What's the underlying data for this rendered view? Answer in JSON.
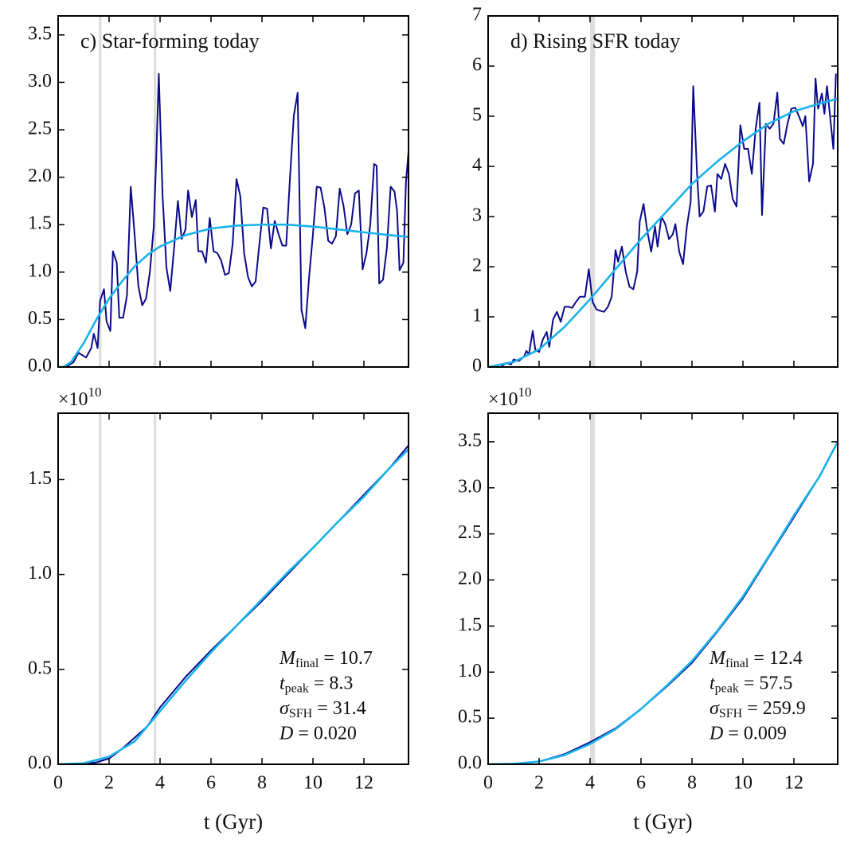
{
  "chart_data": [
    {
      "type": "line",
      "title": "c) Star-forming today",
      "xlim": [
        0,
        13.75
      ],
      "ylim": [
        0,
        3.7
      ],
      "xticks": [
        0,
        2,
        4,
        6,
        8,
        10,
        12
      ],
      "xticklabels": false,
      "yticks": [
        {
          "value": 0,
          "label": "0.0"
        },
        {
          "value": 0.5,
          "label": "0.5"
        },
        {
          "value": 1,
          "label": "1.0"
        },
        {
          "value": 1.5,
          "label": "1.5"
        },
        {
          "value": 2,
          "label": "2.0"
        },
        {
          "value": 2.5,
          "label": "2.5"
        },
        {
          "value": 3,
          "label": "3.0"
        },
        {
          "value": 3.5,
          "label": "3.5"
        }
      ],
      "bands": [
        [
          1.6,
          1.7
        ],
        [
          3.75,
          3.85
        ]
      ],
      "band_color": "#dddddd",
      "series": [
        {
          "color": "#0a0a8a",
          "x": [
            0,
            0.3,
            0.6,
            0.8,
            1.1,
            1.3,
            1.4,
            1.55,
            1.65,
            1.8,
            1.9,
            2.05,
            2.15,
            2.3,
            2.4,
            2.55,
            2.7,
            2.85,
            3.0,
            3.15,
            3.3,
            3.45,
            3.6,
            3.75,
            3.85,
            3.95,
            4.1,
            4.25,
            4.4,
            4.55,
            4.7,
            4.85,
            5.0,
            5.1,
            5.25,
            5.4,
            5.5,
            5.65,
            5.8,
            5.95,
            6.1,
            6.25,
            6.4,
            6.55,
            6.7,
            6.85,
            7.0,
            7.15,
            7.3,
            7.45,
            7.6,
            7.75,
            7.9,
            8.05,
            8.2,
            8.35,
            8.5,
            8.65,
            8.8,
            8.95,
            9.1,
            9.25,
            9.4,
            9.55,
            9.7,
            9.85,
            10.0,
            10.15,
            10.3,
            10.45,
            10.6,
            10.75,
            10.9,
            11.05,
            11.2,
            11.35,
            11.5,
            11.65,
            11.8,
            11.95,
            12.1,
            12.25,
            12.4,
            12.5,
            12.6,
            12.75,
            12.9,
            13.05,
            13.2,
            13.3,
            13.4,
            13.55,
            13.65,
            13.75
          ],
          "values": [
            0,
            0,
            0.05,
            0.15,
            0.1,
            0.2,
            0.35,
            0.2,
            0.7,
            0.82,
            0.48,
            0.38,
            1.22,
            1.1,
            0.52,
            0.52,
            0.75,
            1.9,
            1.4,
            0.85,
            0.65,
            0.72,
            1.0,
            1.47,
            2.2,
            3.09,
            1.8,
            1.05,
            0.8,
            1.25,
            1.75,
            1.35,
            1.45,
            1.86,
            1.58,
            1.76,
            1.22,
            1.22,
            1.1,
            1.57,
            1.22,
            1.2,
            1.12,
            0.97,
            0.99,
            1.3,
            1.98,
            1.8,
            1.2,
            0.95,
            0.85,
            0.9,
            1.3,
            1.68,
            1.67,
            1.25,
            1.54,
            1.4,
            1.28,
            1.28,
            2.0,
            2.65,
            2.89,
            0.6,
            0.41,
            0.95,
            1.4,
            1.9,
            1.89,
            1.68,
            1.33,
            1.3,
            1.38,
            1.88,
            1.7,
            1.4,
            1.5,
            1.83,
            1.86,
            1.03,
            1.2,
            1.5,
            2.14,
            2.12,
            0.88,
            0.92,
            1.25,
            1.9,
            1.85,
            1.65,
            1.02,
            1.1,
            1.95,
            2.27
          ]
        },
        {
          "color": "#1ab2ec",
          "x": [
            0,
            0.2,
            0.5,
            1,
            1.5,
            2,
            2.5,
            3,
            3.5,
            4,
            5,
            6,
            7,
            8,
            9,
            10,
            11,
            12,
            13,
            13.75
          ],
          "values": [
            0,
            0,
            0.05,
            0.25,
            0.5,
            0.72,
            0.9,
            1.06,
            1.18,
            1.27,
            1.39,
            1.46,
            1.49,
            1.5,
            1.5,
            1.48,
            1.45,
            1.42,
            1.39,
            1.37
          ]
        }
      ]
    },
    {
      "type": "line",
      "title": "d) Rising SFR today",
      "xlim": [
        0,
        13.72
      ],
      "ylim": [
        0,
        7
      ],
      "xticks": [
        0,
        2,
        4,
        6,
        8,
        10,
        12
      ],
      "xticklabels": false,
      "yticks": [
        0,
        1,
        2,
        3,
        4,
        5,
        6,
        7
      ],
      "bands": [
        [
          4.0,
          4.2
        ]
      ],
      "band_color": "#dddddd",
      "series": [
        {
          "color": "#0a0a8a",
          "x": [
            0,
            0.5,
            0.7,
            0.9,
            1.0,
            1.2,
            1.4,
            1.5,
            1.6,
            1.75,
            1.85,
            2.0,
            2.15,
            2.3,
            2.4,
            2.55,
            2.7,
            2.85,
            3.0,
            3.15,
            3.3,
            3.45,
            3.6,
            3.8,
            3.95,
            4.1,
            4.25,
            4.4,
            4.55,
            4.7,
            4.85,
            5.0,
            5.1,
            5.25,
            5.4,
            5.55,
            5.7,
            5.85,
            5.95,
            6.1,
            6.25,
            6.4,
            6.55,
            6.65,
            6.8,
            6.95,
            7.1,
            7.25,
            7.35,
            7.5,
            7.65,
            7.8,
            7.95,
            8.05,
            8.2,
            8.3,
            8.45,
            8.6,
            8.75,
            8.9,
            9.0,
            9.15,
            9.3,
            9.45,
            9.6,
            9.75,
            9.9,
            10.05,
            10.2,
            10.35,
            10.5,
            10.65,
            10.75,
            10.9,
            11.05,
            11.2,
            11.35,
            11.45,
            11.6,
            11.75,
            11.9,
            12.05,
            12.2,
            12.35,
            12.45,
            12.6,
            12.75,
            12.85,
            12.95,
            13.1,
            13.2,
            13.3,
            13.45,
            13.55,
            13.65
          ],
          "values": [
            0,
            0,
            0.08,
            0.05,
            0.15,
            0.12,
            0.2,
            0.32,
            0.25,
            0.72,
            0.35,
            0.3,
            0.55,
            0.7,
            0.4,
            0.95,
            1.1,
            0.9,
            1.2,
            1.2,
            1.18,
            1.3,
            1.4,
            1.4,
            1.95,
            1.3,
            1.15,
            1.12,
            1.1,
            1.2,
            1.4,
            2.33,
            2.1,
            2.4,
            1.9,
            1.6,
            1.55,
            1.9,
            2.9,
            3.25,
            2.7,
            2.3,
            2.8,
            2.4,
            3.0,
            2.85,
            2.55,
            2.65,
            2.85,
            2.3,
            2.05,
            2.8,
            3.3,
            5.6,
            3.85,
            3.0,
            3.1,
            3.6,
            3.62,
            3.1,
            3.85,
            3.75,
            4.05,
            3.85,
            3.35,
            3.2,
            4.82,
            4.35,
            4.35,
            3.85,
            4.75,
            5.27,
            3.03,
            4.85,
            4.75,
            4.85,
            5.47,
            4.55,
            4.45,
            4.85,
            5.15,
            5.17,
            5.0,
            4.8,
            5.0,
            3.7,
            4.05,
            5.75,
            5.15,
            5.45,
            5.05,
            5.6,
            4.85,
            4.35,
            5.85
          ]
        },
        {
          "color": "#1ab2ec",
          "x": [
            0,
            1,
            2,
            3,
            4,
            5,
            6,
            7,
            8,
            9,
            10,
            11,
            12,
            13,
            13.72
          ],
          "values": [
            0,
            0.1,
            0.35,
            0.8,
            1.35,
            1.95,
            2.55,
            3.1,
            3.65,
            4.1,
            4.5,
            4.85,
            5.1,
            5.25,
            5.35
          ]
        }
      ]
    },
    {
      "type": "line",
      "xlabel": "t (Gyr)",
      "y_multiplier": {
        "base": "×10",
        "exponent": "10"
      },
      "xlim": [
        0,
        13.75
      ],
      "ylim": [
        0,
        1.85
      ],
      "xticks": [
        0,
        2,
        4,
        6,
        8,
        10,
        12
      ],
      "xticklabels": true,
      "yticks": [
        {
          "value": 0,
          "label": "0.0"
        },
        {
          "value": 0.5,
          "label": "0.5"
        },
        {
          "value": 1,
          "label": "1.0"
        },
        {
          "value": 1.5,
          "label": "1.5"
        }
      ],
      "bands": [
        [
          1.6,
          1.7
        ],
        [
          3.75,
          3.85
        ]
      ],
      "band_color": "#dddddd",
      "annotations": [
        {
          "var": "M",
          "sub": "final",
          "text": "= 10.7"
        },
        {
          "var": "t",
          "sub": "peak",
          "text": "= 8.3"
        },
        {
          "var": "σ",
          "sub": "SFH",
          "text": "= 31.4"
        },
        {
          "var": "D",
          "sub": "",
          "text": "= 0.020"
        }
      ],
      "series": [
        {
          "color": "#0a0a8a",
          "x": [
            0,
            1,
            1.5,
            2,
            2.5,
            3,
            3.5,
            4,
            5,
            6,
            7,
            8,
            9,
            10,
            11,
            12,
            13,
            13.75
          ],
          "values": [
            0,
            0.002,
            0.01,
            0.03,
            0.08,
            0.14,
            0.2,
            0.3,
            0.46,
            0.6,
            0.73,
            0.86,
            1.0,
            1.14,
            1.28,
            1.42,
            1.56,
            1.68
          ]
        },
        {
          "color": "#1ab2ec",
          "x": [
            0,
            1,
            2,
            3,
            4,
            5,
            6,
            7,
            8,
            9,
            10,
            11,
            12,
            13,
            13.75
          ],
          "values": [
            0,
            0.005,
            0.04,
            0.12,
            0.28,
            0.44,
            0.59,
            0.73,
            0.87,
            1.01,
            1.14,
            1.28,
            1.41,
            1.56,
            1.66
          ]
        }
      ]
    },
    {
      "type": "line",
      "xlabel": "t (Gyr)",
      "y_multiplier": {
        "base": "×10",
        "exponent": "10"
      },
      "xlim": [
        0,
        13.72
      ],
      "ylim": [
        0,
        3.81
      ],
      "xticks": [
        0,
        2,
        4,
        6,
        8,
        10,
        12
      ],
      "xticklabels": true,
      "yticks": [
        {
          "value": 0,
          "label": "0.0"
        },
        {
          "value": 0.5,
          "label": "0.5"
        },
        {
          "value": 1,
          "label": "1.0"
        },
        {
          "value": 1.5,
          "label": "1.5"
        },
        {
          "value": 2,
          "label": "2.0"
        },
        {
          "value": 2.5,
          "label": "2.5"
        },
        {
          "value": 3,
          "label": "3.0"
        },
        {
          "value": 3.5,
          "label": "3.5"
        }
      ],
      "bands": [
        [
          4.0,
          4.2
        ]
      ],
      "band_color": "#dddddd",
      "annotations": [
        {
          "var": "M",
          "sub": "final",
          "text": "= 12.4"
        },
        {
          "var": "t",
          "sub": "peak",
          "text": "= 57.5"
        },
        {
          "var": "σ",
          "sub": "SFH",
          "text": "= 259.9"
        },
        {
          "var": "D",
          "sub": "",
          "text": "= 0.009"
        }
      ],
      "series": [
        {
          "color": "#0a0a8a",
          "x": [
            0,
            1,
            2,
            3,
            4,
            5,
            6,
            7,
            8,
            9,
            10,
            11,
            12,
            13,
            13.72
          ],
          "values": [
            0,
            0.004,
            0.03,
            0.11,
            0.24,
            0.39,
            0.6,
            0.84,
            1.1,
            1.44,
            1.8,
            2.24,
            2.68,
            3.12,
            3.5
          ]
        },
        {
          "color": "#1ab2ec",
          "x": [
            0,
            1,
            2,
            3,
            4,
            5,
            6,
            7,
            8,
            9,
            10,
            11,
            12,
            13,
            13.72
          ],
          "values": [
            0,
            0.005,
            0.03,
            0.1,
            0.22,
            0.38,
            0.6,
            0.85,
            1.12,
            1.45,
            1.82,
            2.25,
            2.7,
            3.12,
            3.5
          ]
        }
      ]
    }
  ]
}
